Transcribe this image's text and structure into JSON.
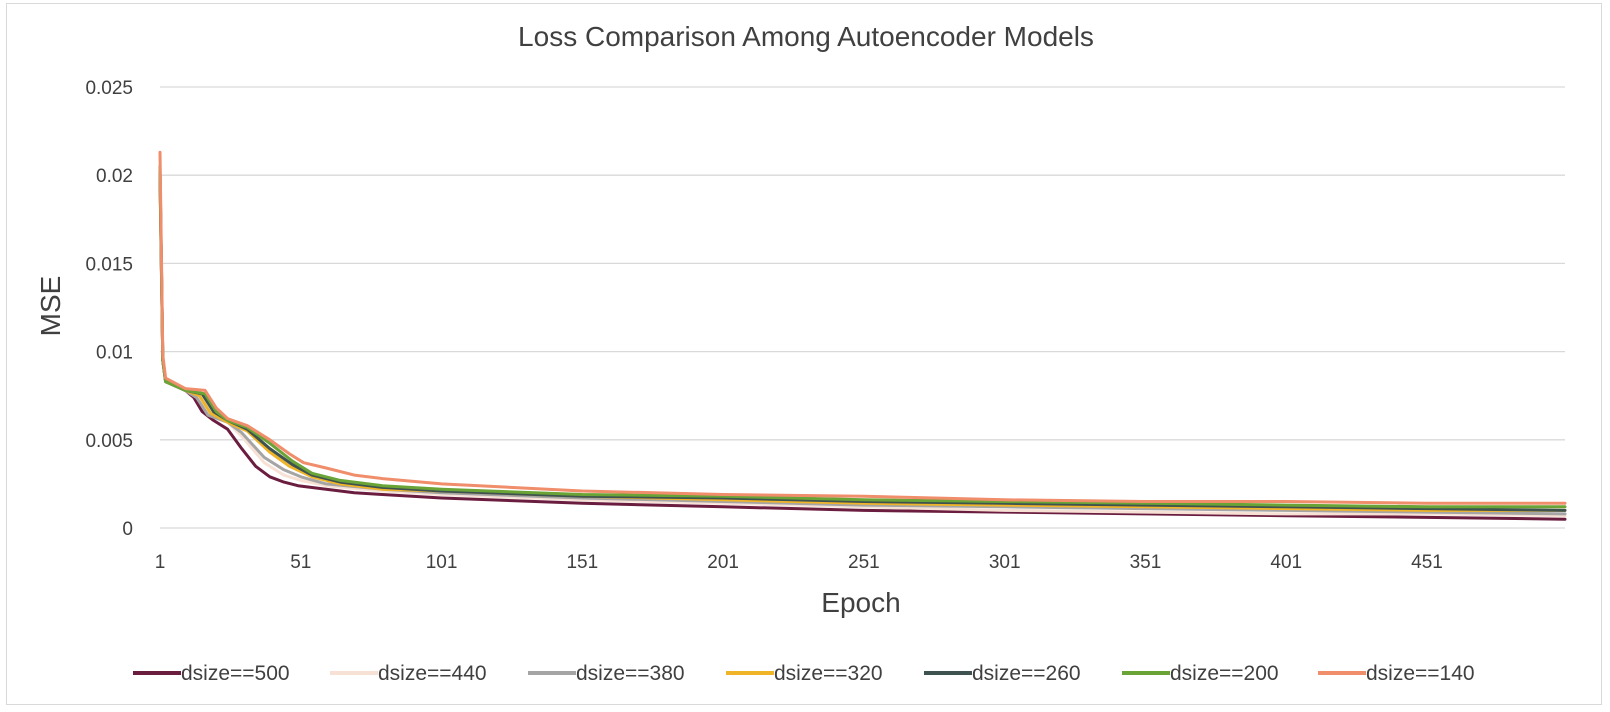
{
  "chart_data": {
    "type": "line",
    "title": "Loss Comparison Among Autoencoder Models",
    "xlabel": "Epoch",
    "ylabel": "MSE",
    "x_ticks": [
      "1",
      "51",
      "101",
      "151",
      "201",
      "251",
      "301",
      "351",
      "401",
      "451"
    ],
    "y_ticks": [
      "0",
      "0.005",
      "0.01",
      "0.015",
      "0.02",
      "0.025"
    ],
    "xlim": [
      1,
      500
    ],
    "ylim": [
      0,
      0.025
    ],
    "grid": "horizontal",
    "legend_position": "bottom",
    "series": [
      {
        "name": "dsize==500",
        "color": "#6b1d3f",
        "points": [
          [
            1,
            0.02
          ],
          [
            2,
            0.0095
          ],
          [
            3,
            0.0083
          ],
          [
            10,
            0.0078
          ],
          [
            13,
            0.0074
          ],
          [
            16,
            0.0066
          ],
          [
            20,
            0.0061
          ],
          [
            25,
            0.0056
          ],
          [
            30,
            0.0045
          ],
          [
            35,
            0.0035
          ],
          [
            40,
            0.0029
          ],
          [
            45,
            0.0026
          ],
          [
            50,
            0.0024
          ],
          [
            60,
            0.0022
          ],
          [
            70,
            0.002
          ],
          [
            80,
            0.0019
          ],
          [
            101,
            0.0017
          ],
          [
            151,
            0.0014
          ],
          [
            201,
            0.0012
          ],
          [
            251,
            0.001
          ],
          [
            301,
            0.0009
          ],
          [
            351,
            0.0008
          ],
          [
            401,
            0.0007
          ],
          [
            451,
            0.0006
          ],
          [
            500,
            0.0005
          ]
        ]
      },
      {
        "name": "dsize==440",
        "color": "#f7e1d5",
        "points": [
          [
            1,
            0.0195
          ],
          [
            2,
            0.0095
          ],
          [
            3,
            0.0083
          ],
          [
            10,
            0.0078
          ],
          [
            14,
            0.0074
          ],
          [
            18,
            0.0065
          ],
          [
            25,
            0.006
          ],
          [
            30,
            0.0052
          ],
          [
            38,
            0.0037
          ],
          [
            45,
            0.003
          ],
          [
            51,
            0.0027
          ],
          [
            60,
            0.0024
          ],
          [
            80,
            0.0021
          ],
          [
            101,
            0.0019
          ],
          [
            151,
            0.0016
          ],
          [
            201,
            0.0014
          ],
          [
            251,
            0.0012
          ],
          [
            301,
            0.001
          ],
          [
            351,
            0.0009
          ],
          [
            401,
            0.0008
          ],
          [
            451,
            0.0008
          ],
          [
            500,
            0.0007
          ]
        ]
      },
      {
        "name": "dsize==380",
        "color": "#a5a5a5",
        "points": [
          [
            1,
            0.0198
          ],
          [
            2,
            0.0095
          ],
          [
            3,
            0.0083
          ],
          [
            10,
            0.0078
          ],
          [
            14,
            0.0074
          ],
          [
            18,
            0.0064
          ],
          [
            25,
            0.006
          ],
          [
            30,
            0.0054
          ],
          [
            38,
            0.004
          ],
          [
            45,
            0.0033
          ],
          [
            51,
            0.0029
          ],
          [
            60,
            0.0025
          ],
          [
            80,
            0.0022
          ],
          [
            101,
            0.002
          ],
          [
            151,
            0.0017
          ],
          [
            201,
            0.0015
          ],
          [
            251,
            0.0013
          ],
          [
            301,
            0.0012
          ],
          [
            351,
            0.0011
          ],
          [
            401,
            0.001
          ],
          [
            451,
            0.0009
          ],
          [
            500,
            0.0008
          ]
        ]
      },
      {
        "name": "dsize==320",
        "color": "#f0b429",
        "points": [
          [
            1,
            0.02
          ],
          [
            2,
            0.0095
          ],
          [
            3,
            0.0083
          ],
          [
            10,
            0.0078
          ],
          [
            15,
            0.0075
          ],
          [
            19,
            0.0065
          ],
          [
            25,
            0.006
          ],
          [
            32,
            0.0055
          ],
          [
            40,
            0.0043
          ],
          [
            47,
            0.0035
          ],
          [
            55,
            0.0029
          ],
          [
            65,
            0.0025
          ],
          [
            80,
            0.0022
          ],
          [
            101,
            0.0021
          ],
          [
            151,
            0.0018
          ],
          [
            201,
            0.0016
          ],
          [
            251,
            0.0014
          ],
          [
            301,
            0.0013
          ],
          [
            351,
            0.0012
          ],
          [
            401,
            0.0011
          ],
          [
            451,
            0.001
          ],
          [
            500,
            0.001
          ]
        ]
      },
      {
        "name": "dsize==260",
        "color": "#3e5350",
        "points": [
          [
            1,
            0.0202
          ],
          [
            2,
            0.0095
          ],
          [
            3,
            0.0083
          ],
          [
            10,
            0.0078
          ],
          [
            16,
            0.0076
          ],
          [
            20,
            0.0066
          ],
          [
            25,
            0.0061
          ],
          [
            32,
            0.0056
          ],
          [
            40,
            0.0045
          ],
          [
            48,
            0.0036
          ],
          [
            55,
            0.003
          ],
          [
            65,
            0.0026
          ],
          [
            80,
            0.0023
          ],
          [
            101,
            0.0021
          ],
          [
            151,
            0.0018
          ],
          [
            201,
            0.0017
          ],
          [
            251,
            0.0015
          ],
          [
            301,
            0.0014
          ],
          [
            351,
            0.0013
          ],
          [
            401,
            0.0012
          ],
          [
            451,
            0.0011
          ],
          [
            500,
            0.001
          ]
        ]
      },
      {
        "name": "dsize==200",
        "color": "#6aa436",
        "points": [
          [
            1,
            0.0205
          ],
          [
            2,
            0.0095
          ],
          [
            3,
            0.0083
          ],
          [
            10,
            0.0078
          ],
          [
            17,
            0.0076
          ],
          [
            21,
            0.0066
          ],
          [
            25,
            0.0061
          ],
          [
            32,
            0.0057
          ],
          [
            40,
            0.0048
          ],
          [
            48,
            0.0038
          ],
          [
            55,
            0.0031
          ],
          [
            65,
            0.0027
          ],
          [
            80,
            0.0024
          ],
          [
            101,
            0.0022
          ],
          [
            151,
            0.0019
          ],
          [
            201,
            0.0018
          ],
          [
            251,
            0.0016
          ],
          [
            301,
            0.0015
          ],
          [
            351,
            0.0014
          ],
          [
            401,
            0.0013
          ],
          [
            451,
            0.0012
          ],
          [
            500,
            0.0012
          ]
        ]
      },
      {
        "name": "dsize==140",
        "color": "#f08d6b",
        "points": [
          [
            1,
            0.0213
          ],
          [
            2,
            0.0098
          ],
          [
            3,
            0.0085
          ],
          [
            10,
            0.0079
          ],
          [
            17,
            0.0078
          ],
          [
            21,
            0.0068
          ],
          [
            25,
            0.0062
          ],
          [
            32,
            0.0058
          ],
          [
            40,
            0.005
          ],
          [
            47,
            0.0042
          ],
          [
            52,
            0.0037
          ],
          [
            60,
            0.0034
          ],
          [
            70,
            0.003
          ],
          [
            80,
            0.0028
          ],
          [
            101,
            0.0025
          ],
          [
            151,
            0.0021
          ],
          [
            201,
            0.0019
          ],
          [
            251,
            0.0018
          ],
          [
            301,
            0.0016
          ],
          [
            351,
            0.0015
          ],
          [
            401,
            0.0015
          ],
          [
            451,
            0.0014
          ],
          [
            500,
            0.0014
          ]
        ]
      }
    ]
  }
}
